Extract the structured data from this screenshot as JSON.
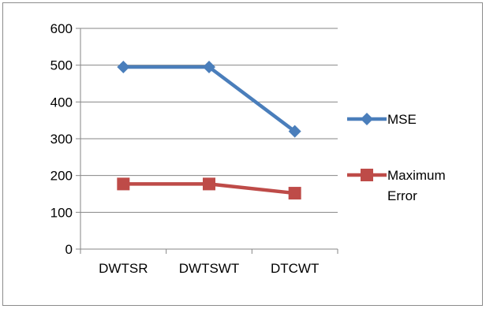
{
  "chart_data": {
    "type": "line",
    "title": "",
    "xlabel": "",
    "ylabel": "",
    "categories": [
      "DWTSR",
      "DWTSWT",
      "DTCWT"
    ],
    "ylim": [
      0,
      600
    ],
    "yticks": [
      0,
      100,
      200,
      300,
      400,
      500,
      600
    ],
    "grid": true,
    "legend_position": "right",
    "series": [
      {
        "name": "MSE",
        "values": [
          495,
          495,
          320
        ],
        "color": "#4a7ebb",
        "marker": "diamond"
      },
      {
        "name": "Maximum Error",
        "name_lines": [
          "Maximum",
          "Error"
        ],
        "values": [
          177,
          177,
          152
        ],
        "color": "#be4b48",
        "marker": "square"
      }
    ]
  }
}
